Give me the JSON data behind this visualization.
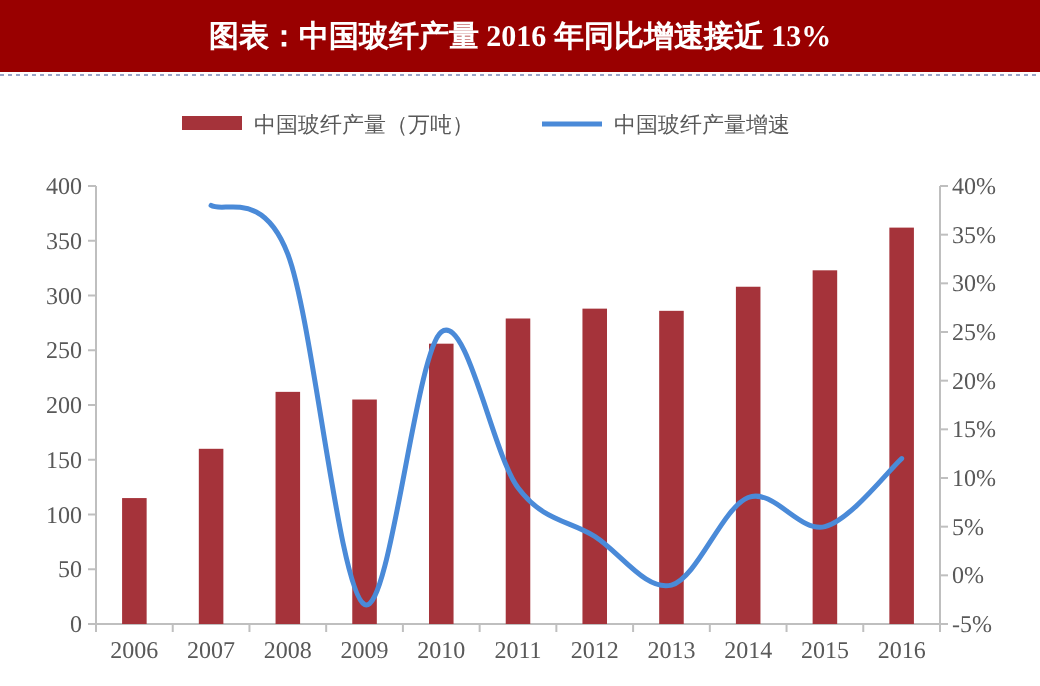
{
  "chart_data": {
    "type": "bar",
    "title": "图表：中国玻纤产量 2016 年同比增速接近 13%",
    "categories": [
      "2006",
      "2007",
      "2008",
      "2009",
      "2010",
      "2011",
      "2012",
      "2013",
      "2014",
      "2015",
      "2016"
    ],
    "series": [
      {
        "name": "中国玻纤产量（万吨）",
        "color": "#a5333a",
        "values": [
          115,
          160,
          212,
          205,
          256,
          279,
          288,
          286,
          308,
          323,
          362
        ]
      },
      {
        "name": "中国玻纤产量增速",
        "type": "line",
        "axis": "y2",
        "color": "#4a8ad8",
        "values": [
          null,
          38,
          33,
          -3,
          25,
          9,
          4,
          -1,
          8,
          5,
          12
        ]
      }
    ],
    "ylim": [
      0,
      400
    ],
    "yticks": [
      0,
      50,
      100,
      150,
      200,
      250,
      300,
      350,
      400
    ],
    "y2lim": [
      -5,
      40
    ],
    "y2ticks": [
      {
        "value": -5,
        "label": "-5%"
      },
      {
        "value": 0,
        "label": "0%"
      },
      {
        "value": 5,
        "label": "5%"
      },
      {
        "value": 10,
        "label": "10%"
      },
      {
        "value": 15,
        "label": "15%"
      },
      {
        "value": 20,
        "label": "20%"
      },
      {
        "value": 25,
        "label": "25%"
      },
      {
        "value": 30,
        "label": "30%"
      },
      {
        "value": 35,
        "label": "35%"
      },
      {
        "value": 40,
        "label": "40%"
      }
    ],
    "legend": "top"
  }
}
